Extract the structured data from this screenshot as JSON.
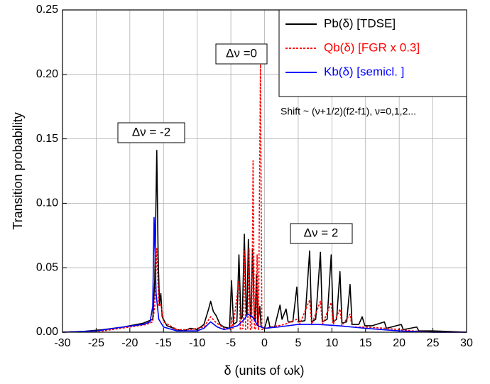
{
  "chart_data": {
    "type": "line",
    "xlabel": "δ (units of ωk)",
    "ylabel": "Transition probability",
    "xlim": [
      -30,
      30
    ],
    "ylim": [
      0,
      0.25
    ],
    "xticks": [
      -30,
      -25,
      -20,
      -15,
      -10,
      -5,
      0,
      5,
      10,
      15,
      20,
      25,
      30
    ],
    "yticks": [
      {
        "value": 0,
        "label": "0.00"
      },
      0.05,
      {
        "value": 0.1,
        "label": "0.10"
      },
      0.15,
      {
        "value": 0.2,
        "label": "0.20"
      },
      0.25
    ],
    "grid": true,
    "legend": "upper right",
    "annotations": [
      "Δν =0",
      "Δν = -2",
      "Δν = 2",
      "Shift ~ (ν+1/2)(f2-f1), ν=0,1,2..."
    ],
    "series": [
      {
        "name": "Pb(δ)  [TDSE]",
        "color": "#000000",
        "linestyle": "solid",
        "x": [
          -30,
          -27,
          -24,
          -21,
          -18,
          -16.6,
          -16.3,
          -16.0,
          -15.8,
          -15.6,
          -15.4,
          -15.2,
          -14.5,
          -13,
          -12,
          -11,
          -10,
          -9,
          -8.3,
          -8,
          -7.6,
          -7.2,
          -6.6,
          -6,
          -5.2,
          -4.9,
          -4.6,
          -4.1,
          -3.8,
          -3.5,
          -3.3,
          -3.0,
          -2.7,
          -2.6,
          -2.4,
          -2.1,
          -2.0,
          -1.8,
          -1.5,
          -1.4,
          -1.2,
          -1.0,
          -0.7,
          -0.5,
          0,
          0.5,
          0.8,
          1.5,
          2.3,
          2.6,
          3.2,
          3.5,
          4.2,
          4.8,
          5.1,
          6.0,
          6.7,
          7.0,
          7.6,
          8.3,
          8.6,
          9.3,
          9.9,
          10.2,
          10.7,
          11.2,
          11.5,
          12.2,
          12.7,
          13.0,
          14.0,
          14.5,
          14.9,
          16,
          17.8,
          18.1,
          20.3,
          20.6,
          22.6,
          22.9,
          25,
          30
        ],
        "values": [
          0,
          0.0005,
          0.002,
          0.004,
          0.007,
          0.01,
          0.04,
          0.141,
          0.06,
          0.022,
          0.03,
          0.012,
          0.005,
          0.002,
          0.001,
          0.003,
          0.002,
          0.006,
          0.018,
          0.024,
          0.016,
          0.013,
          0.006,
          0.004,
          0.003,
          0.04,
          0.006,
          0.008,
          0.06,
          0.01,
          0.012,
          0.076,
          0.014,
          0.014,
          0.072,
          0.012,
          0.012,
          0.065,
          0.01,
          0.009,
          0.045,
          0.006,
          0.02,
          0.004,
          0.003,
          0.012,
          0.004,
          0.004,
          0.021,
          0.01,
          0.018,
          0.008,
          0.008,
          0.035,
          0.008,
          0.009,
          0.063,
          0.008,
          0.01,
          0.062,
          0.008,
          0.01,
          0.06,
          0.008,
          0.01,
          0.047,
          0.007,
          0.008,
          0.037,
          0.006,
          0.006,
          0.012,
          0.005,
          0.005,
          0.008,
          0.003,
          0.006,
          0.002,
          0.004,
          0.001,
          0.001,
          0
        ]
      },
      {
        "name": "Qb(δ)  [FGR  x 0.3]",
        "color": "#ff0000",
        "linestyle": "dotted",
        "x": [
          -30,
          -24,
          -20,
          -17.5,
          -16.6,
          -16.3,
          -16.0,
          -15.7,
          -15.4,
          -15,
          -13,
          -11,
          -9,
          -8,
          -7.3,
          -6,
          -5,
          -4.9,
          -4.7,
          -3.8,
          -3.6,
          -3.2,
          -3.0,
          -2.8,
          -2.5,
          -2.3,
          -2.1,
          -1.9,
          -1.7,
          -1.5,
          -1.3,
          -1.1,
          -0.9,
          -0.6,
          -0.4,
          0,
          1,
          3,
          4.8,
          5.2,
          6.7,
          7.0,
          8.3,
          8.6,
          9.9,
          10.2,
          11.2,
          11.5,
          12.7,
          13,
          15,
          18,
          22,
          25,
          30
        ],
        "values": [
          0,
          0.001,
          0.004,
          0.006,
          0.008,
          0.02,
          0.065,
          0.02,
          0.022,
          0.008,
          0.002,
          0.002,
          0.004,
          0.012,
          0.008,
          0.003,
          0.002,
          0.012,
          0.003,
          0.04,
          0.002,
          0.003,
          0.063,
          0.002,
          0.003,
          0.065,
          0.002,
          0.003,
          0.133,
          0.002,
          0.003,
          0.06,
          0.002,
          0.21,
          0.002,
          0.003,
          0.004,
          0.006,
          0.01,
          0.006,
          0.025,
          0.006,
          0.024,
          0.006,
          0.023,
          0.006,
          0.018,
          0.005,
          0.014,
          0.004,
          0.004,
          0.003,
          0.001,
          0,
          0
        ]
      },
      {
        "name": "Kb(δ)  [semicl. ]",
        "color": "#0000ff",
        "linestyle": "solid",
        "x": [
          -30,
          -25,
          -21,
          -18,
          -17,
          -16.6,
          -16.4,
          -16.1,
          -15.7,
          -15,
          -13,
          -10,
          -9,
          -8,
          -7,
          -6,
          -4,
          -3,
          -2.5,
          -1.8,
          -1,
          0,
          2,
          5,
          8,
          11,
          15,
          20,
          25,
          30
        ],
        "values": [
          0,
          0.001,
          0.004,
          0.006,
          0.008,
          0.02,
          0.089,
          0.03,
          0.01,
          0.004,
          0.001,
          0.001,
          0.003,
          0.008,
          0.004,
          0.002,
          0.005,
          0.01,
          0.014,
          0.012,
          0.005,
          0.003,
          0.004,
          0.006,
          0.006,
          0.005,
          0.003,
          0.001,
          0,
          0
        ]
      }
    ]
  }
}
